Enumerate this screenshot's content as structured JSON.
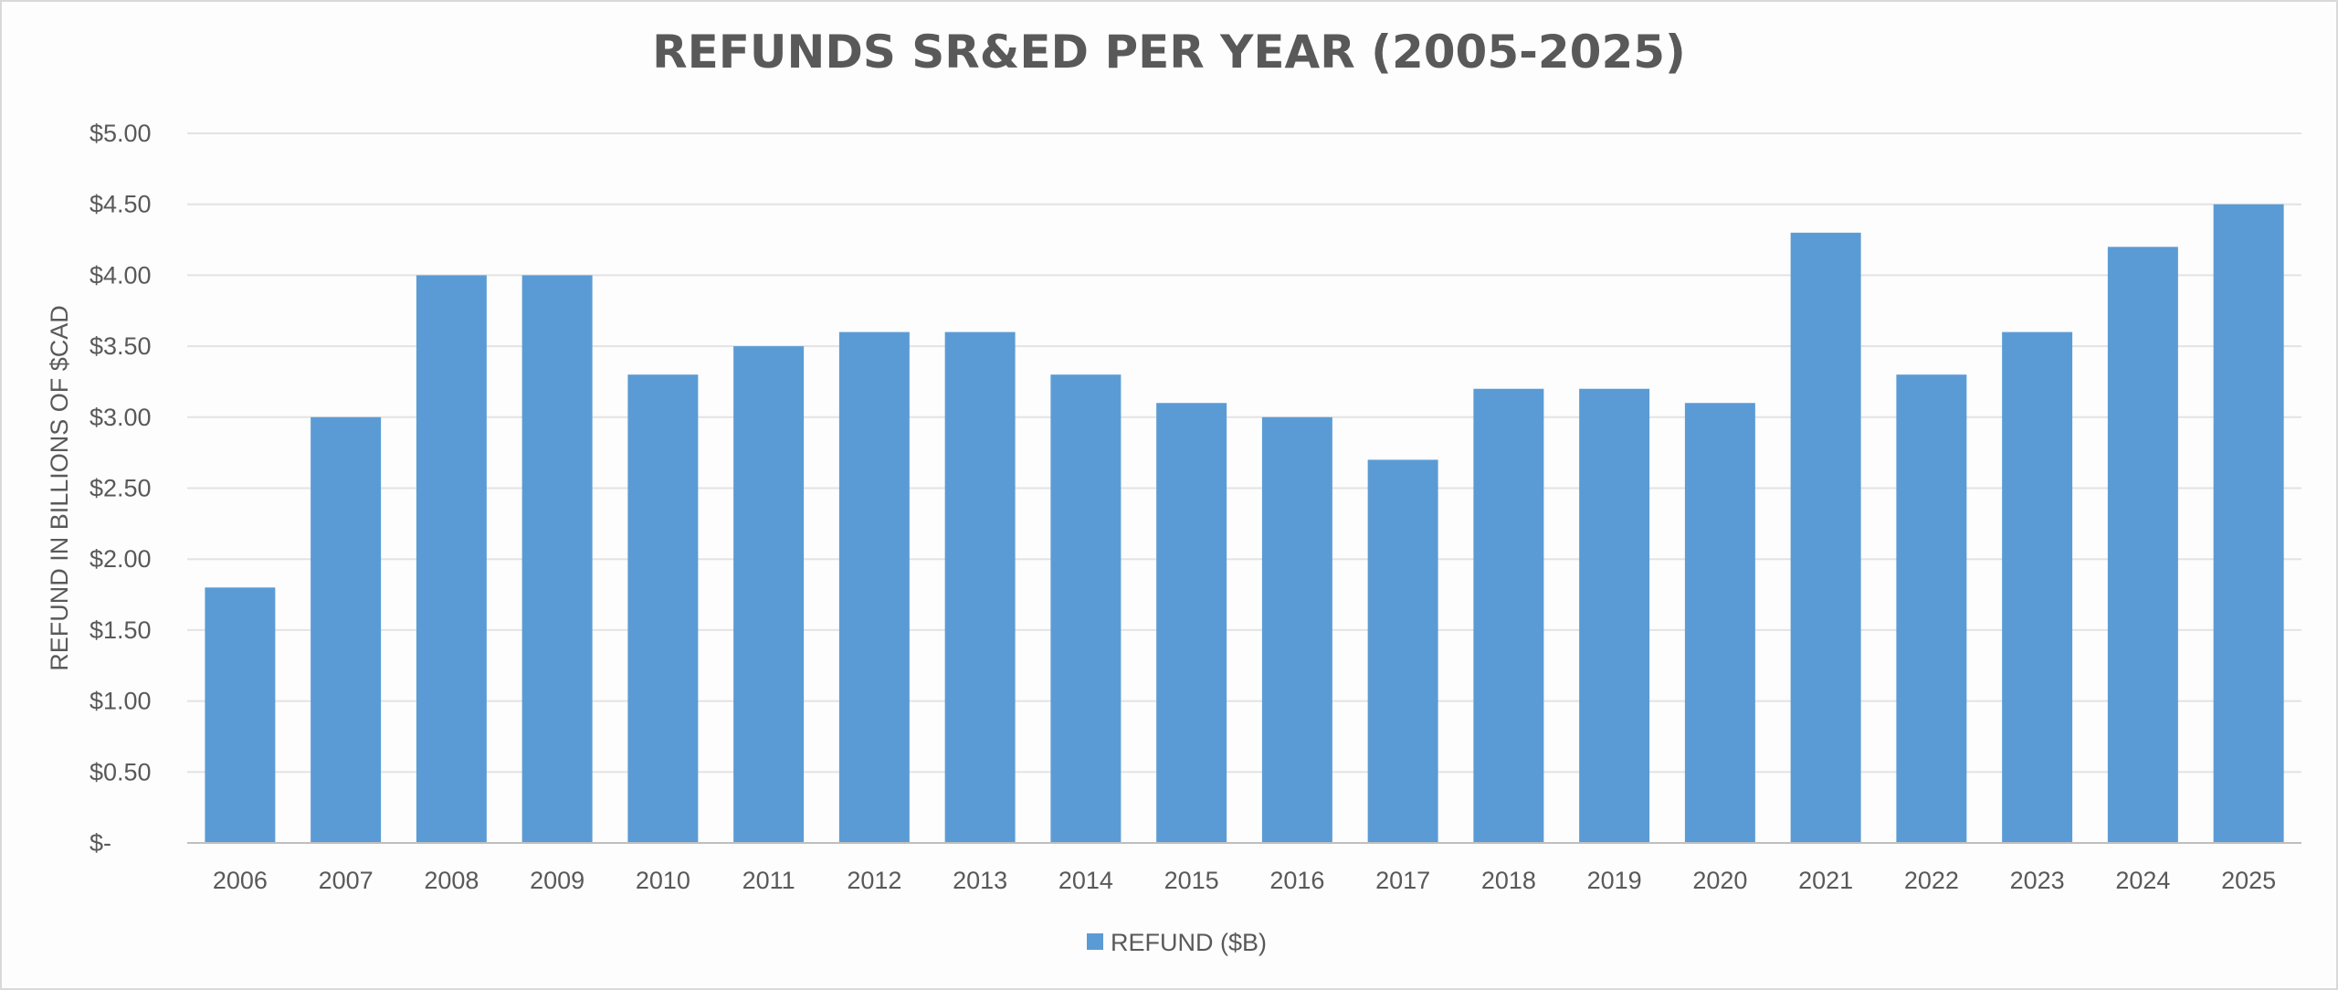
{
  "chart_data": {
    "type": "bar",
    "title": "REFUNDS SR&ED PER YEAR (2005-2025)",
    "ylabel": "REFUND IN BILLIONS OF $CAD",
    "xlabel": "",
    "categories": [
      "2006",
      "2007",
      "2008",
      "2009",
      "2010",
      "2011",
      "2012",
      "2013",
      "2014",
      "2015",
      "2016",
      "2017",
      "2018",
      "2019",
      "2020",
      "2021",
      "2022",
      "2023",
      "2024",
      "2025"
    ],
    "series": [
      {
        "name": "REFUND ($B)",
        "color": "#5b9bd5",
        "values": [
          1.8,
          3.0,
          4.0,
          4.0,
          3.3,
          3.5,
          3.6,
          3.6,
          3.3,
          3.1,
          3.0,
          2.7,
          3.2,
          3.2,
          3.1,
          4.3,
          3.3,
          3.6,
          4.2,
          4.5
        ]
      }
    ],
    "ylim": [
      0,
      5
    ],
    "yticks": [
      0,
      0.5,
      1,
      1.5,
      2,
      2.5,
      3,
      3.5,
      4,
      4.5,
      5
    ],
    "ytick_labels": [
      "$-",
      "$0.50",
      "$1.00",
      "$1.50",
      "$2.00",
      "$2.50",
      "$3.00",
      "$3.50",
      "$4.00",
      "$4.50",
      "$5.00"
    ],
    "grid": true,
    "legend_position": "bottom"
  }
}
